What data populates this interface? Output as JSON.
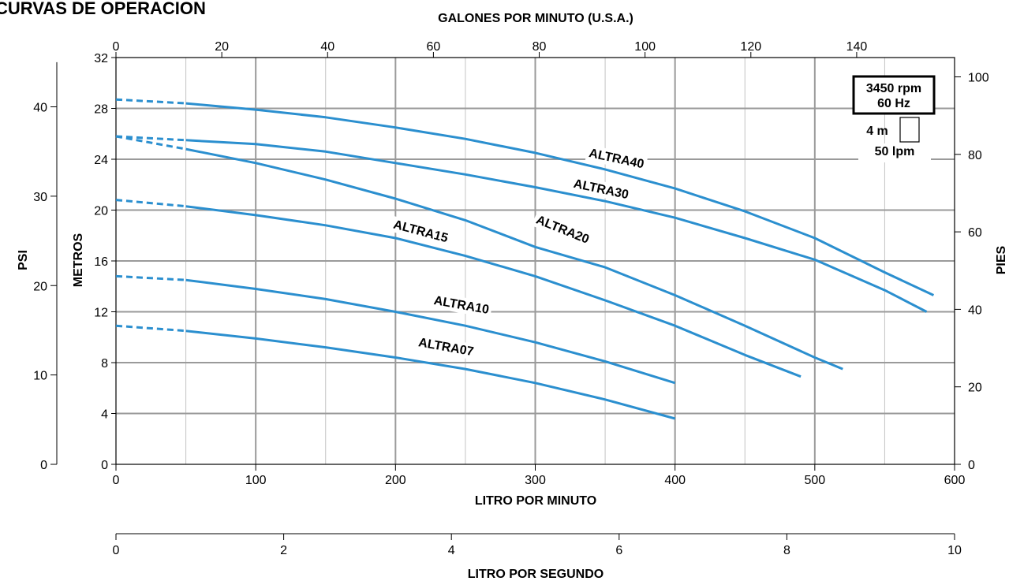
{
  "chart_data": {
    "type": "line",
    "title": "CURVAS DE OPERACION",
    "xlabel": "LITRO POR MINUTO",
    "xlabel_top": "GALONES POR MINUTO (U.S.A.)",
    "xlabel_bottom": "LITRO POR SEGUNDO",
    "ylabel": "METROS",
    "ylabel_outer": "PSI",
    "ylabel_right": "PIES",
    "xlim": [
      0,
      600
    ],
    "ylim": [
      0,
      32
    ],
    "x_ticks": [
      "0",
      "100",
      "200",
      "300",
      "400",
      "500",
      "600"
    ],
    "y_ticks": [
      "0",
      "4",
      "8",
      "12",
      "16",
      "20",
      "24",
      "28",
      "32"
    ],
    "top_axis": {
      "ticks": [
        "0",
        "20",
        "40",
        "60",
        "80",
        "100",
        "120",
        "140"
      ],
      "units_per_lpm": 0.26417
    },
    "psi_axis": {
      "ticks": [
        "0",
        "10",
        "20",
        "30",
        "40"
      ],
      "meters_per_unit": 0.7031
    },
    "pies_axis": {
      "ticks": [
        "0",
        "20",
        "40",
        "60",
        "80",
        "100"
      ],
      "meters_per_unit": 0.3048
    },
    "lps_axis": {
      "ticks": [
        "0",
        "2",
        "4",
        "6",
        "8",
        "10"
      ],
      "lpm_per_unit": 60
    },
    "grid": true,
    "speed_box": {
      "line1": "3450 rpm",
      "line2": "60 Hz"
    },
    "scale_key": {
      "top": "4 m",
      "bottom": "50 lpm"
    },
    "series": [
      {
        "name": "ALTRA40",
        "x": [
          0,
          50,
          100,
          150,
          200,
          250,
          300,
          350,
          400,
          450,
          500,
          550,
          585
        ],
        "y": [
          28.7,
          28.4,
          27.9,
          27.3,
          26.5,
          25.6,
          24.5,
          23.2,
          21.7,
          19.9,
          17.8,
          15.1,
          13.3
        ],
        "label_x": 338,
        "label_y": 24.2,
        "label_angle": 12
      },
      {
        "name": "ALTRA30",
        "x": [
          0,
          50,
          100,
          150,
          200,
          250,
          300,
          350,
          400,
          450,
          500,
          550,
          580
        ],
        "y": [
          25.8,
          25.5,
          25.2,
          24.6,
          23.7,
          22.8,
          21.8,
          20.7,
          19.4,
          17.8,
          16.1,
          13.7,
          12.0
        ],
        "label_x": 327,
        "label_y": 21.8,
        "label_angle": 12
      },
      {
        "name": "ALTRA20",
        "x": [
          0,
          50,
          100,
          150,
          200,
          250,
          300,
          350,
          400,
          450,
          500,
          520
        ],
        "y": [
          25.8,
          24.8,
          23.7,
          22.4,
          20.9,
          19.2,
          17.1,
          15.5,
          13.3,
          10.9,
          8.4,
          7.5
        ],
        "label_x": 300,
        "label_y": 19.0,
        "label_angle": 22
      },
      {
        "name": "ALTRA15",
        "x": [
          0,
          50,
          100,
          150,
          200,
          250,
          300,
          350,
          400,
          450,
          490
        ],
        "y": [
          20.8,
          20.3,
          19.6,
          18.8,
          17.8,
          16.4,
          14.8,
          12.9,
          10.9,
          8.6,
          6.9
        ],
        "label_x": 198,
        "label_y": 18.6,
        "label_angle": 15
      },
      {
        "name": "ALTRA10",
        "x": [
          0,
          50,
          100,
          150,
          200,
          250,
          300,
          350,
          400
        ],
        "y": [
          14.8,
          14.5,
          13.8,
          13.0,
          12.0,
          10.9,
          9.6,
          8.1,
          6.4
        ],
        "label_x": 227,
        "label_y": 12.6,
        "label_angle": 10
      },
      {
        "name": "ALTRA07",
        "x": [
          0,
          50,
          100,
          150,
          200,
          250,
          300,
          350,
          400
        ],
        "y": [
          10.9,
          10.5,
          9.9,
          9.2,
          8.4,
          7.5,
          6.4,
          5.1,
          3.6
        ],
        "label_x": 216,
        "label_y": 9.3,
        "label_angle": 10
      }
    ],
    "colors": {
      "curve": "#2b8fcf",
      "grid_major": "#9a9a9a",
      "grid_minor": "#c4c4c4",
      "frame": "#000000"
    }
  }
}
